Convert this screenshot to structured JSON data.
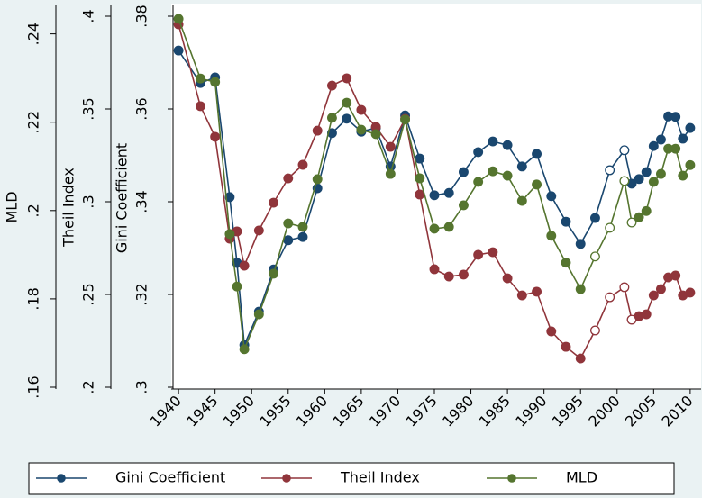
{
  "chart_data": {
    "type": "line",
    "x": [
      1940,
      1943,
      1945,
      1947,
      1948,
      1949,
      1951,
      1953,
      1955,
      1957,
      1959,
      1961,
      1963,
      1965,
      1967,
      1969,
      1971,
      1973,
      1975,
      1977,
      1979,
      1981,
      1983,
      1985,
      1987,
      1989,
      1991,
      1993,
      1995,
      1997,
      1999,
      2001,
      2002,
      2003,
      2004,
      2005,
      2006,
      2007,
      2008,
      2009,
      2010
    ],
    "xlim": [
      1939,
      2011
    ],
    "xticks": [
      1940,
      1945,
      1950,
      1955,
      1960,
      1965,
      1970,
      1975,
      1980,
      1985,
      1990,
      1995,
      2000,
      2005,
      2010
    ],
    "ylabel": "Gini Coefficient",
    "ylim": [
      0.3,
      0.38
    ],
    "yticks": [
      {
        "value": 0.3,
        "label": ".3"
      },
      {
        "value": 0.32,
        "label": ".32"
      },
      {
        "value": 0.34,
        "label": ".34"
      },
      {
        "value": 0.36,
        "label": ".36"
      },
      {
        "value": 0.38,
        "label": ".38"
      }
    ],
    "y2label": "Theil Index",
    "y2lim": [
      0.2,
      0.4
    ],
    "y2ticks": [
      {
        "value": 0.2,
        "label": ".2"
      },
      {
        "value": 0.25,
        "label": ".25"
      },
      {
        "value": 0.3,
        "label": ".3"
      },
      {
        "value": 0.35,
        "label": ".35"
      },
      {
        "value": 0.4,
        "label": ".4"
      }
    ],
    "y3label": "MLD",
    "y3lim": [
      0.16,
      0.244
    ],
    "y3ticks": [
      {
        "value": 0.16,
        "label": ".16"
      },
      {
        "value": 0.18,
        "label": ".18"
      },
      {
        "value": 0.2,
        "label": ".2"
      },
      {
        "value": 0.22,
        "label": ".22"
      },
      {
        "value": 0.24,
        "label": ".24"
      }
    ],
    "grid": false,
    "legend": "bottom",
    "series": [
      {
        "name": "Gini Coefficient",
        "color": "#1a476f",
        "axis": "y",
        "open_markers": [
          30,
          31
        ],
        "values": [
          0.3726,
          0.3656,
          0.3668,
          0.341,
          0.3268,
          0.3091,
          0.3163,
          0.3254,
          0.3317,
          0.3324,
          0.3429,
          0.3548,
          0.3579,
          0.3551,
          0.3559,
          0.3476,
          0.3586,
          0.3493,
          0.3414,
          0.3419,
          0.3464,
          0.3507,
          0.353,
          0.3522,
          0.3476,
          0.3503,
          0.3412,
          0.3357,
          0.3309,
          0.3365,
          0.3468,
          0.3511,
          0.3439,
          0.3449,
          0.3464,
          0.352,
          0.3534,
          0.3584,
          0.3583,
          0.3536,
          0.3559
        ]
      },
      {
        "name": "Theil Index",
        "color": "#90353b",
        "axis": "y2",
        "open_markers": [
          29,
          30,
          31,
          32
        ],
        "values": [
          0.3956,
          0.3515,
          0.335,
          0.2801,
          0.284,
          0.2655,
          0.2845,
          0.2995,
          0.3126,
          0.3199,
          0.3383,
          0.3626,
          0.3665,
          0.3495,
          0.3403,
          0.3296,
          0.3447,
          0.3039,
          0.2636,
          0.2597,
          0.2607,
          0.2714,
          0.2728,
          0.2587,
          0.2495,
          0.2515,
          0.2301,
          0.2218,
          0.2155,
          0.2306,
          0.2485,
          0.2539,
          0.2364,
          0.2383,
          0.2393,
          0.2495,
          0.2529,
          0.2592,
          0.2602,
          0.2495,
          0.251
        ]
      },
      {
        "name": "MLD",
        "color": "#55752f",
        "axis": "y3",
        "open_markers": [
          29,
          30,
          31,
          32
        ],
        "values": [
          0.2434,
          0.2299,
          0.2291,
          0.1947,
          0.1828,
          0.1686,
          0.1765,
          0.1857,
          0.1971,
          0.1963,
          0.2071,
          0.221,
          0.2244,
          0.2183,
          0.2173,
          0.2083,
          0.2206,
          0.2073,
          0.1959,
          0.1963,
          0.2012,
          0.2065,
          0.2089,
          0.2079,
          0.2022,
          0.2059,
          0.1943,
          0.1882,
          0.1822,
          0.1896,
          0.1961,
          0.2067,
          0.1973,
          0.1985,
          0.1999,
          0.2065,
          0.2083,
          0.214,
          0.214,
          0.2079,
          0.2103
        ]
      }
    ]
  }
}
